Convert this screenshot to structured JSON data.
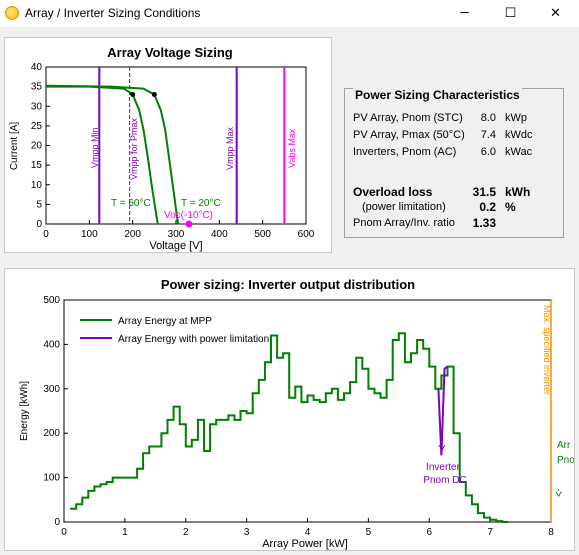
{
  "window": {
    "title": "Array / Inverter Sizing Conditions",
    "minimize_glyph": "─",
    "maximize_glyph": "☐",
    "close_glyph": "✕"
  },
  "voltage_chart": {
    "title": "Array Voltage Sizing",
    "xlabel": "Voltage [V]",
    "ylabel": "Current [A]",
    "x_ticks": [
      "0",
      "100",
      "200",
      "300",
      "400",
      "500",
      "600"
    ],
    "y_ticks": [
      "0",
      "5",
      "10",
      "15",
      "20",
      "25",
      "30",
      "35",
      "40"
    ],
    "labels": {
      "vmpp_min": "Vmpp Min",
      "vmpp_pmax": "Vmpp for Pmax",
      "vmpp_max": "Vmpp Max",
      "vabs_max": "Vabs Max",
      "t60": "T = 60°C",
      "t20": "T = 20°C",
      "voc": "Voc(-10°C)"
    },
    "colors": {
      "curve": "#008000",
      "vmpp": "#8000c0",
      "vabs": "#ff00ff",
      "axis": "#000000"
    }
  },
  "characteristics": {
    "title": "Power Sizing Characteristics",
    "rows": [
      {
        "label": "PV Array, Pnom (STC)",
        "value": "8.0",
        "unit": "kWp"
      },
      {
        "label": "PV Array, Pmax (50°C)",
        "value": "7.4",
        "unit": "kWdc"
      },
      {
        "label": "Inverters, Pnom (AC)",
        "value": "6.0",
        "unit": "kWac"
      }
    ],
    "overload_label": "Overload loss",
    "overload_value": "31.5",
    "overload_unit": "kWh",
    "limitation_label": "(power limitation)",
    "limitation_value": "0.2",
    "limitation_unit": "%",
    "ratio_label": "Pnom Array/Inv. ratio",
    "ratio_value": "1.33"
  },
  "chart_data": [
    {
      "type": "line",
      "title": "Array Voltage Sizing",
      "xlabel": "Voltage [V]",
      "ylabel": "Current [A]",
      "xlim": [
        0,
        600
      ],
      "ylim": [
        0,
        40
      ],
      "series": [
        {
          "name": "T = 60°C",
          "x": [
            0,
            100,
            180,
            200,
            215,
            225,
            235,
            245,
            255,
            258
          ],
          "y": [
            35,
            35,
            34.5,
            33,
            29,
            24,
            17,
            9,
            2,
            0
          ]
        },
        {
          "name": "T = 20°C",
          "x": [
            0,
            150,
            225,
            250,
            265,
            275,
            285,
            295,
            302,
            305
          ],
          "y": [
            35.2,
            35,
            34.5,
            33,
            29,
            24,
            16,
            8,
            2,
            0
          ]
        }
      ],
      "vlines": [
        {
          "name": "Vmpp Min",
          "x": 123
        },
        {
          "name": "Vmpp for Pmax",
          "x": 193
        },
        {
          "name": "Vmpp Max",
          "x": 440
        },
        {
          "name": "Vabs Max",
          "x": 550
        }
      ],
      "points": [
        {
          "name": "Voc(-10°C)",
          "x": 330,
          "y": 0
        }
      ]
    },
    {
      "type": "line",
      "title": "Power sizing: Inverter output distribution",
      "xlabel": "Array Power [kW]",
      "ylabel": "Energy [kWh]",
      "xlim": [
        0,
        8
      ],
      "ylim": [
        0,
        500
      ],
      "x_ticks": [
        "0",
        "1",
        "2",
        "3",
        "4",
        "5",
        "6",
        "7",
        "8"
      ],
      "y_ticks": [
        "0",
        "100",
        "200",
        "300",
        "400",
        "500"
      ],
      "legend": [
        "Array Energy at MPP",
        "Array Energy with power limitation"
      ],
      "annotations": [
        "Inverter",
        "Pnom DC",
        "Max. specified inverter",
        "Arr",
        "Pno"
      ],
      "series": [
        {
          "name": "Array Energy at MPP",
          "x": [
            0.1,
            0.2,
            0.3,
            0.4,
            0.5,
            0.6,
            0.7,
            0.8,
            0.9,
            1.0,
            1.1,
            1.2,
            1.3,
            1.4,
            1.5,
            1.6,
            1.7,
            1.8,
            1.9,
            2.0,
            2.1,
            2.2,
            2.3,
            2.4,
            2.5,
            2.6,
            2.7,
            2.8,
            2.9,
            3.0,
            3.1,
            3.2,
            3.3,
            3.4,
            3.5,
            3.6,
            3.7,
            3.8,
            3.9,
            4.0,
            4.1,
            4.2,
            4.3,
            4.4,
            4.5,
            4.6,
            4.7,
            4.8,
            4.9,
            5.0,
            5.1,
            5.2,
            5.3,
            5.4,
            5.5,
            5.6,
            5.7,
            5.8,
            5.9,
            6.0,
            6.1,
            6.2,
            6.3,
            6.4,
            6.5,
            6.6,
            6.7,
            6.8,
            6.9,
            7.0,
            7.1,
            7.2
          ],
          "y": [
            30,
            40,
            55,
            70,
            80,
            85,
            90,
            100,
            100,
            100,
            100,
            120,
            155,
            170,
            170,
            200,
            230,
            260,
            220,
            170,
            185,
            230,
            160,
            220,
            230,
            230,
            240,
            230,
            250,
            245,
            290,
            320,
            360,
            420,
            370,
            380,
            280,
            305,
            270,
            285,
            275,
            270,
            290,
            300,
            275,
            290,
            315,
            370,
            345,
            300,
            290,
            280,
            320,
            410,
            425,
            360,
            380,
            410,
            390,
            350,
            300,
            330,
            350,
            200,
            90,
            60,
            40,
            20,
            10,
            5,
            2,
            0
          ]
        },
        {
          "name": "Array Energy with power limitation",
          "x": [
            6.15,
            6.2,
            6.25,
            6.3
          ],
          "y": [
            300,
            150,
            345,
            350
          ]
        }
      ]
    }
  ]
}
